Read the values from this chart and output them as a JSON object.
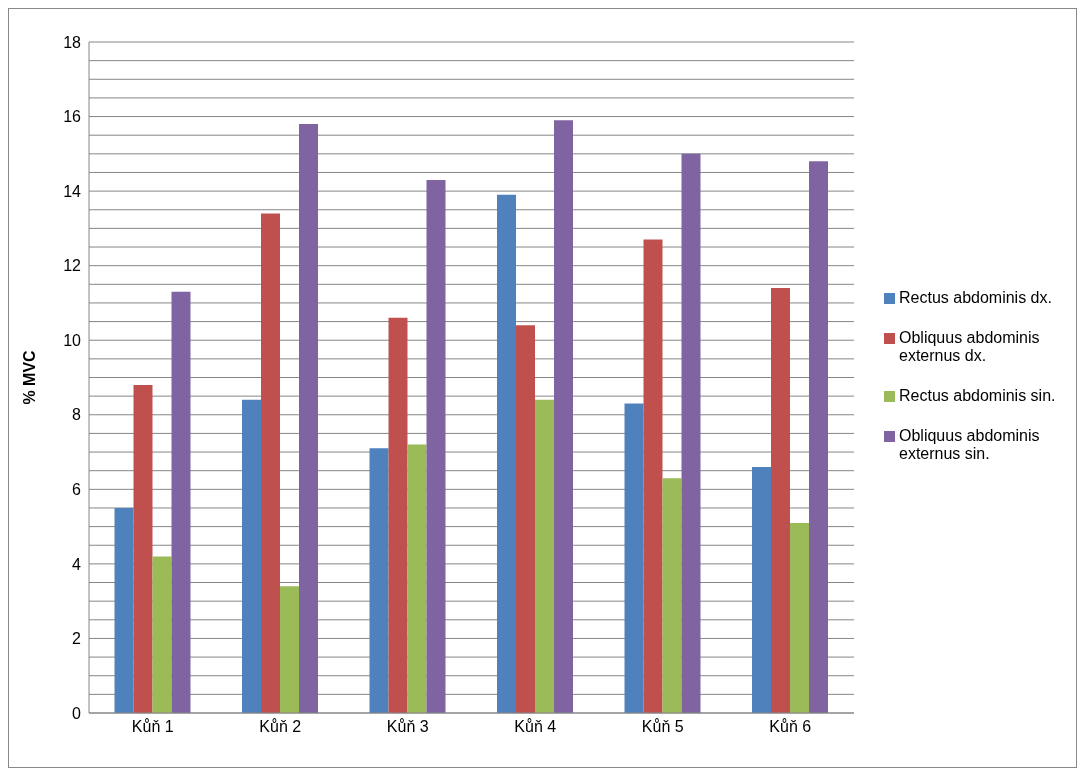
{
  "chart_data": {
    "type": "bar",
    "ylabel": "% MVC",
    "categories": [
      "Kůň 1",
      "Kůň 2",
      "Kůň 3",
      "Kůň 4",
      "Kůň 5",
      "Kůň 6"
    ],
    "series": [
      {
        "name": "Rectus abdominis dx.",
        "color": "#4f81bd",
        "values": [
          5.5,
          8.4,
          7.1,
          13.9,
          8.3,
          6.6
        ]
      },
      {
        "name": "Obliquus abdominis externus dx.",
        "color": "#c0504d",
        "values": [
          8.8,
          13.4,
          10.6,
          10.4,
          12.7,
          11.4
        ]
      },
      {
        "name": "Rectus abdominis sin.",
        "color": "#9bbb59",
        "values": [
          4.2,
          3.4,
          7.2,
          8.4,
          6.3,
          5.1
        ]
      },
      {
        "name": "Obliquus abdominis externus sin.",
        "color": "#8064a2",
        "values": [
          11.3,
          15.8,
          14.3,
          15.9,
          15.0,
          14.8
        ]
      }
    ],
    "ylim": [
      0,
      18
    ],
    "yticks": [
      0,
      {
        "value": 0.5,
        "label": null
      },
      {
        "value": 1,
        "label": null
      },
      {
        "value": 1.5,
        "label": null
      },
      2,
      {
        "value": 2.5,
        "label": null
      },
      {
        "value": 3,
        "label": null
      },
      {
        "value": 3.5,
        "label": null
      },
      4,
      {
        "value": 4.5,
        "label": null
      },
      {
        "value": 5,
        "label": null
      },
      {
        "value": 5.5,
        "label": null
      },
      6,
      {
        "value": 6.5,
        "label": null
      },
      {
        "value": 7,
        "label": null
      },
      {
        "value": 7.5,
        "label": null
      },
      8,
      {
        "value": 8.5,
        "label": null
      },
      {
        "value": 9,
        "label": null
      },
      {
        "value": 9.5,
        "label": null
      },
      10,
      {
        "value": 10.5,
        "label": null
      },
      {
        "value": 11,
        "label": null
      },
      {
        "value": 11.5,
        "label": null
      },
      12,
      {
        "value": 12.5,
        "label": null
      },
      {
        "value": 13,
        "label": null
      },
      {
        "value": 13.5,
        "label": null
      },
      14,
      {
        "value": 14.5,
        "label": null
      },
      {
        "value": 15,
        "label": null
      },
      {
        "value": 15.5,
        "label": null
      },
      16,
      {
        "value": 16.5,
        "label": null
      },
      {
        "value": 17,
        "label": null
      },
      {
        "value": 17.5,
        "label": null
      },
      18
    ],
    "grid": "y",
    "legend": "right"
  }
}
